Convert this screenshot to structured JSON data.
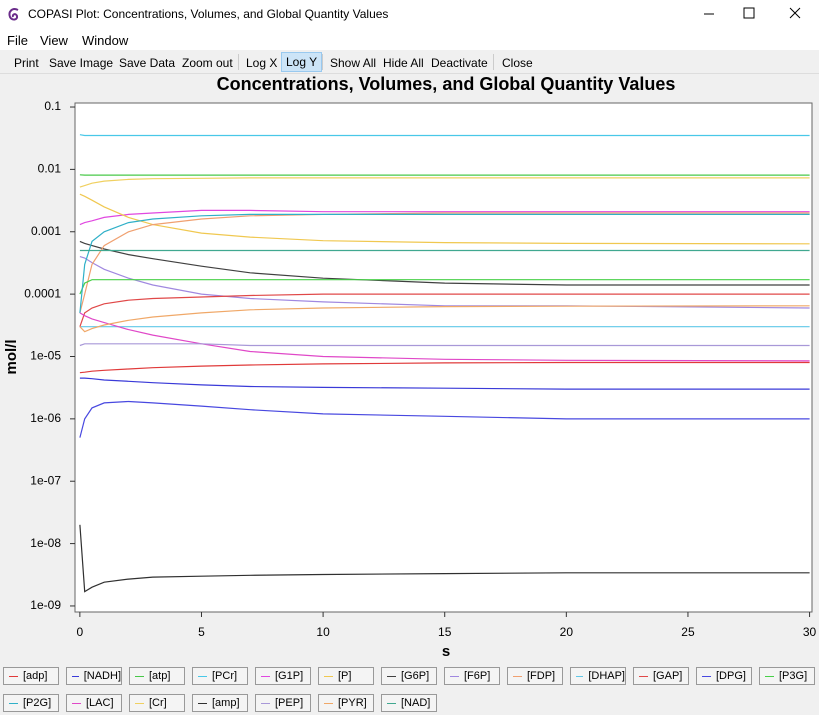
{
  "window": {
    "title": "COPASI Plot: Concentrations, Volumes, and Global Quantity Values",
    "menu": [
      "File",
      "View",
      "Window"
    ],
    "toolbar": [
      "Print",
      "Save Image",
      "Save Data",
      "Zoom out",
      "Log X",
      "Log Y",
      "Show All",
      "Hide All",
      "Deactivate",
      "Close"
    ]
  },
  "chart_data": {
    "type": "line",
    "title": "Concentrations, Volumes, and Global Quantity Values",
    "x_label": "s",
    "y_label": "mol/l",
    "log_y": true,
    "grid": false,
    "xlim": [
      -0.2,
      30.1
    ],
    "xticks": [
      0,
      5,
      10,
      15,
      20,
      25,
      30
    ],
    "ylim": [
      8e-10,
      0.116
    ],
    "yticks": [
      0.1,
      0.01,
      0.001,
      0.0001,
      {
        "value": 1e-05,
        "label": "1e-05"
      },
      {
        "value": 1e-06,
        "label": "1e-06"
      },
      {
        "value": 1e-07,
        "label": "1e-07"
      },
      {
        "value": 1e-08,
        "label": "1e-08"
      },
      {
        "value": 1e-09,
        "label": "1e-09"
      }
    ],
    "x": [
      0,
      0.2,
      0.5,
      1,
      2,
      3,
      5,
      7,
      10,
      15,
      20,
      30
    ],
    "series": [
      {
        "name": "[adp]",
        "color": "#e03a3a",
        "values": [
          5.5e-06,
          5.6e-06,
          5.8e-06,
          6e-06,
          6.3e-06,
          6.6e-06,
          7e-06,
          7.3e-06,
          7.6e-06,
          7.9e-06,
          8e-06,
          8e-06
        ]
      },
      {
        "name": "[NADH]",
        "color": "#3a3ad8",
        "values": [
          4.5e-06,
          4.5e-06,
          4.4e-06,
          4.2e-06,
          4e-06,
          3.8e-06,
          3.5e-06,
          3.3e-06,
          3.2e-06,
          3.1e-06,
          3e-06,
          3e-06
        ]
      },
      {
        "name": "[atp]",
        "color": "#48c848",
        "values": [
          0.0082,
          0.0081,
          0.0081,
          0.0081,
          0.0081,
          0.0081,
          0.0081,
          0.0081,
          0.0081,
          0.0081,
          0.0081,
          0.0081
        ]
      },
      {
        "name": "[PCr]",
        "color": "#48c8e8",
        "values": [
          0.036,
          0.035,
          0.035,
          0.035,
          0.035,
          0.035,
          0.035,
          0.035,
          0.035,
          0.035,
          0.035,
          0.035
        ]
      },
      {
        "name": "[G1P]",
        "color": "#e048e0",
        "values": [
          0.0013,
          0.0014,
          0.0015,
          0.0017,
          0.0019,
          0.002,
          0.0022,
          0.0022,
          0.0021,
          0.0021,
          0.0021,
          0.0021
        ]
      },
      {
        "name": "[P]",
        "color": "#f0c850",
        "values": [
          0.004,
          0.0037,
          0.0032,
          0.0025,
          0.0017,
          0.0013,
          0.00095,
          0.00082,
          0.00072,
          0.00067,
          0.00065,
          0.00064
        ]
      },
      {
        "name": "[G6P]",
        "color": "#404040",
        "values": [
          0.0007,
          0.00065,
          0.0006,
          0.00053,
          0.00043,
          0.00037,
          0.00028,
          0.00022,
          0.00018,
          0.00015,
          0.00014,
          0.00014
        ]
      },
      {
        "name": "[F6P]",
        "color": "#a088e0",
        "values": [
          0.0004,
          0.00038,
          0.00032,
          0.00025,
          0.00018,
          0.00014,
          0.0001,
          8.5e-05,
          7.5e-05,
          6.5e-05,
          6.5e-05,
          6e-05
        ]
      },
      {
        "name": "[FDP]",
        "color": "#f0a070",
        "values": [
          5e-05,
          0.0001,
          0.0003,
          0.0006,
          0.001,
          0.0013,
          0.0016,
          0.0018,
          0.0019,
          0.002,
          0.002,
          0.002
        ]
      },
      {
        "name": "[DHAP]",
        "color": "#60c8e8",
        "values": [
          3e-05,
          3e-05,
          3e-05,
          3e-05,
          3e-05,
          3e-05,
          3e-05,
          3e-05,
          3e-05,
          3e-05,
          3e-05,
          3e-05
        ]
      },
      {
        "name": "[GAP]",
        "color": "#e04848",
        "values": [
          3e-05,
          5e-05,
          6e-05,
          7e-05,
          8e-05,
          8.5e-05,
          9e-05,
          9.5e-05,
          0.0001,
          0.0001,
          0.0001,
          0.0001
        ]
      },
      {
        "name": "[DPG]",
        "color": "#4848e0",
        "values": [
          5e-07,
          1e-06,
          1.5e-06,
          1.8e-06,
          1.9e-06,
          1.8e-06,
          1.6e-06,
          1.4e-06,
          1.2e-06,
          1.1e-06,
          1e-06,
          1e-06
        ]
      },
      {
        "name": "[P3G]",
        "color": "#48d048",
        "values": [
          0.0001,
          0.00015,
          0.00017,
          0.00017,
          0.00017,
          0.00017,
          0.00017,
          0.00017,
          0.00017,
          0.00017,
          0.00017,
          0.00017
        ]
      },
      {
        "name": "[P2G]",
        "color": "#30b0c8",
        "values": [
          5e-05,
          0.0003,
          0.0007,
          0.001,
          0.0014,
          0.0016,
          0.0018,
          0.0019,
          0.0019,
          0.0019,
          0.0019,
          0.0019
        ]
      },
      {
        "name": "[LAC]",
        "color": "#e048c8",
        "values": [
          5e-05,
          4.5e-05,
          4e-05,
          3.5e-05,
          2.7e-05,
          2.2e-05,
          1.6e-05,
          1.2e-05,
          1e-05,
          9e-06,
          8.7e-06,
          8.5e-06
        ]
      },
      {
        "name": "[Cr]",
        "color": "#f0d060",
        "values": [
          0.0052,
          0.0055,
          0.006,
          0.0065,
          0.0069,
          0.0071,
          0.0072,
          0.0073,
          0.0073,
          0.0073,
          0.0073,
          0.0073
        ]
      },
      {
        "name": "[amp]",
        "color": "#303030",
        "values": [
          2e-08,
          1.7e-09,
          2e-09,
          2.4e-09,
          2.7e-09,
          2.9e-09,
          3e-09,
          3.1e-09,
          3.2e-09,
          3.3e-09,
          3.4e-09,
          3.4e-09
        ]
      },
      {
        "name": "[PEP]",
        "color": "#a898d8",
        "values": [
          1.5e-05,
          1.6e-05,
          1.6e-05,
          1.6e-05,
          1.6e-05,
          1.6e-05,
          1.6e-05,
          1.5e-05,
          1.5e-05,
          1.5e-05,
          1.5e-05,
          1.5e-05
        ]
      },
      {
        "name": "[PYR]",
        "color": "#f0a868",
        "values": [
          3e-05,
          2.5e-05,
          2.8e-05,
          3.2e-05,
          3.8e-05,
          4.3e-05,
          5e-05,
          5.6e-05,
          6e-05,
          6.3e-05,
          6.4e-05,
          6.5e-05
        ]
      },
      {
        "name": "[NAD]",
        "color": "#40a890",
        "values": [
          0.0005,
          0.0005,
          0.0005,
          0.0005,
          0.0005,
          0.0005,
          0.0005,
          0.0005,
          0.0005,
          0.0005,
          0.0005,
          0.0005
        ]
      }
    ]
  }
}
